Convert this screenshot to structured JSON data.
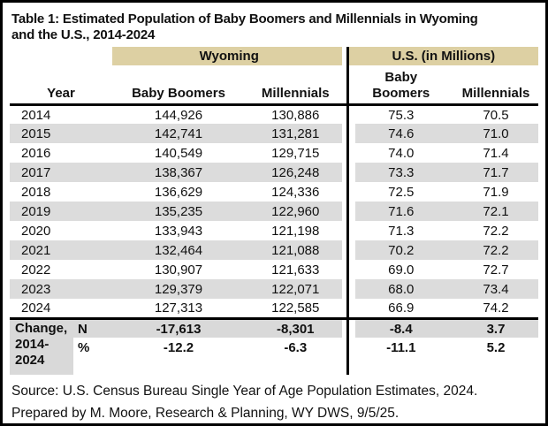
{
  "title": "Table 1: Estimated Population of Baby Boomers and Millennials in Wyoming\nand the U.S., 2014-2024",
  "colors": {
    "band_tan": "#ddd0a3",
    "stripe_gray": "#dcdcdc",
    "label_gray": "#d9d9d9",
    "line_black": "#000000"
  },
  "table": {
    "group_headers": {
      "wyoming": "Wyoming",
      "us": "U.S. (in Millions)"
    },
    "column_headers": {
      "year": "Year",
      "wy_boomers": "Baby Boomers",
      "wy_millennials": "Millennials",
      "us_boomers": "Baby\nBoomers",
      "us_millennials": "Millennials"
    },
    "rows": [
      {
        "year": "2014",
        "wy_boomers": "144,926",
        "wy_millennials": "130,886",
        "us_boomers": "75.3",
        "us_millennials": "70.5"
      },
      {
        "year": "2015",
        "wy_boomers": "142,741",
        "wy_millennials": "131,281",
        "us_boomers": "74.6",
        "us_millennials": "71.0"
      },
      {
        "year": "2016",
        "wy_boomers": "140,549",
        "wy_millennials": "129,715",
        "us_boomers": "74.0",
        "us_millennials": "71.4"
      },
      {
        "year": "2017",
        "wy_boomers": "138,367",
        "wy_millennials": "126,248",
        "us_boomers": "73.3",
        "us_millennials": "71.7"
      },
      {
        "year": "2018",
        "wy_boomers": "136,629",
        "wy_millennials": "124,336",
        "us_boomers": "72.5",
        "us_millennials": "71.9"
      },
      {
        "year": "2019",
        "wy_boomers": "135,235",
        "wy_millennials": "122,960",
        "us_boomers": "71.6",
        "us_millennials": "72.1"
      },
      {
        "year": "2020",
        "wy_boomers": "133,943",
        "wy_millennials": "121,198",
        "us_boomers": "71.3",
        "us_millennials": "72.2"
      },
      {
        "year": "2021",
        "wy_boomers": "132,464",
        "wy_millennials": "121,088",
        "us_boomers": "70.2",
        "us_millennials": "72.2"
      },
      {
        "year": "2022",
        "wy_boomers": "130,907",
        "wy_millennials": "121,633",
        "us_boomers": "69.0",
        "us_millennials": "72.7"
      },
      {
        "year": "2023",
        "wy_boomers": "129,379",
        "wy_millennials": "122,071",
        "us_boomers": "68.0",
        "us_millennials": "73.4"
      },
      {
        "year": "2024",
        "wy_boomers": "127,313",
        "wy_millennials": "122,585",
        "us_boomers": "66.9",
        "us_millennials": "74.2"
      }
    ],
    "change": {
      "label": "Change, 2014-2024",
      "n": {
        "sub": "N",
        "wy_boomers": "-17,613",
        "wy_millennials": "-8,301",
        "us_boomers": "-8.4",
        "us_millennials": "3.7"
      },
      "pct": {
        "sub": "%",
        "wy_boomers": "-12.2",
        "wy_millennials": "-6.3",
        "us_boomers": "-11.1",
        "us_millennials": "5.2"
      }
    }
  },
  "footer": {
    "source_line": "Source: U.S. Census Bureau Single Year of Age Population Estimates, 2024.",
    "prepared_line": "Prepared by M. Moore, Research & Planning, WY DWS, 9/5/25."
  }
}
